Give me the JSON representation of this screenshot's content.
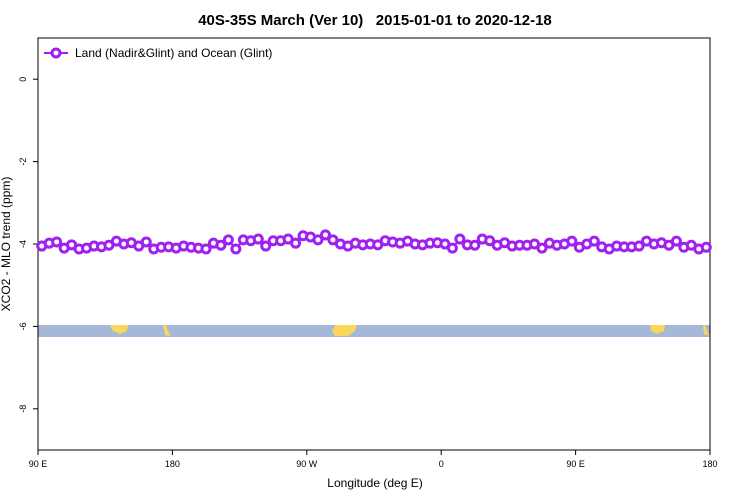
{
  "chart_data": {
    "type": "line",
    "title": "40S-35S March (Ver 10)   2015-01-01 to 2020-12-18",
    "xlabel": "Longitude (deg E)",
    "ylabel": "XCO2 - MLO trend (ppm)",
    "x": [
      92.5,
      97.5,
      102.5,
      107.5,
      112.5,
      117.5,
      122.5,
      127.5,
      132.5,
      137.5,
      142.5,
      147.5,
      152.5,
      157.5,
      162.5,
      167.5,
      172.5,
      177.5,
      182.5,
      187.5,
      192.5,
      197.5,
      202.5,
      207.5,
      212.5,
      217.5,
      222.5,
      227.5,
      232.5,
      237.5,
      242.5,
      247.5,
      252.5,
      257.5,
      262.5,
      267.5,
      272.5,
      277.5,
      282.5,
      287.5,
      292.5,
      297.5,
      302.5,
      307.5,
      312.5,
      317.5,
      322.5,
      327.5,
      332.5,
      337.5,
      342.5,
      347.5,
      352.5,
      357.5,
      362.5,
      367.5,
      372.5,
      377.5,
      382.5,
      387.5,
      392.5,
      397.5,
      402.5,
      407.5,
      412.5,
      417.5,
      422.5,
      427.5,
      432.5,
      437.5,
      442.5,
      447.5,
      452.5,
      457.5,
      462.5,
      467.5,
      472.5,
      477.5,
      482.5,
      487.5,
      492.5,
      497.5,
      502.5,
      507.5,
      512.5,
      517.5,
      522.5,
      527.5,
      532.5,
      537.5
    ],
    "series": [
      {
        "name": "Land (Nadir&Glint) and Ocean (Glint)",
        "color": "#a020f0",
        "values": [
          -4.05,
          -3.98,
          -3.95,
          -4.1,
          -4.02,
          -4.12,
          -4.1,
          -4.05,
          -4.07,
          -4.03,
          -3.93,
          -4.0,
          -3.97,
          -4.05,
          -3.95,
          -4.12,
          -4.08,
          -4.07,
          -4.1,
          -4.05,
          -4.08,
          -4.1,
          -4.12,
          -3.98,
          -4.03,
          -3.9,
          -4.12,
          -3.9,
          -3.92,
          -3.88,
          -4.05,
          -3.92,
          -3.92,
          -3.88,
          -3.98,
          -3.8,
          -3.83,
          -3.9,
          -3.78,
          -3.9,
          -4.0,
          -4.05,
          -3.98,
          -4.02,
          -4.0,
          -4.02,
          -3.92,
          -3.95,
          -3.98,
          -3.93,
          -4.0,
          -4.02,
          -3.98,
          -3.97,
          -4.0,
          -4.1,
          -3.88,
          -4.02,
          -4.03,
          -3.88,
          -3.92,
          -4.03,
          -3.97,
          -4.05,
          -4.03,
          -4.03,
          -4.0,
          -4.1,
          -3.98,
          -4.03,
          -4.0,
          -3.93,
          -4.08,
          -4.0,
          -3.93,
          -4.07,
          -4.12,
          -4.05,
          -4.07,
          -4.07,
          -4.05,
          -3.93,
          -4.0,
          -3.97,
          -4.03,
          -3.93,
          -4.08,
          -4.03,
          -4.12,
          -4.08
        ]
      }
    ],
    "xlim": [
      90,
      540
    ],
    "xticks": [
      {
        "value": 90,
        "label": "90 E"
      },
      180,
      {
        "value": 270,
        "label": "90 W"
      },
      {
        "value": 360,
        "label": "0"
      },
      {
        "value": 450,
        "label": "90 E"
      },
      {
        "value": 540,
        "label": "180"
      }
    ],
    "ylim": [
      -9,
      1
    ],
    "yticks": [
      0,
      -2,
      -4,
      -6,
      -8
    ],
    "legend": "top-left"
  }
}
